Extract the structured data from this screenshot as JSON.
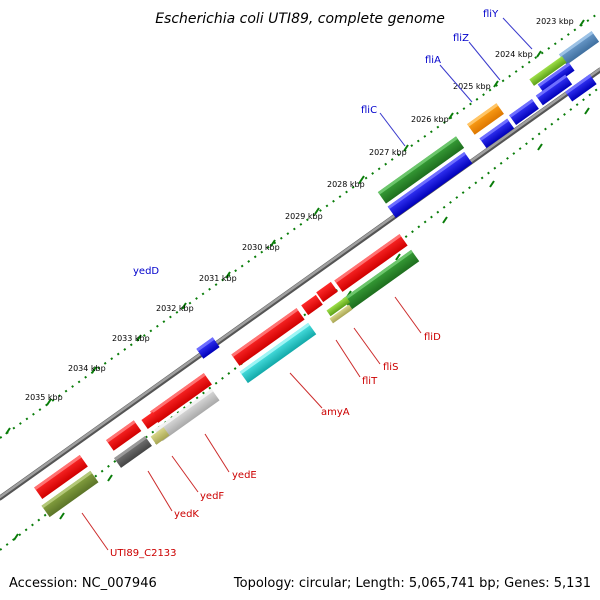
{
  "title": "Escherichia coli UTI89, complete genome",
  "footer": {
    "accession": "Accession: NC_007946",
    "topology": "Topology: circular; Length: 5,065,741 bp; Genes: 5,131"
  },
  "ticks": [
    "2023 kbp",
    "2024 kbp",
    "2025 kbp",
    "2026 kbp",
    "2027 kbp",
    "2028 kbp",
    "2029 kbp",
    "2030 kbp",
    "2031 kbp",
    "2032 kbp",
    "2033 kbp",
    "2034 kbp",
    "2035 kbp"
  ],
  "labels_upper": [
    "fliY",
    "fliZ",
    "fliA",
    "fliC",
    "yedD"
  ],
  "labels_lower": [
    "fliD",
    "fliS",
    "fliT",
    "amyA",
    "yedE",
    "yedF",
    "yedK",
    "UTI89_C2133"
  ],
  "colors": {
    "backbone": "#808080",
    "tick": "#0a7d0a",
    "label_blue": "#0000cc",
    "label_red": "#cc0000"
  }
}
